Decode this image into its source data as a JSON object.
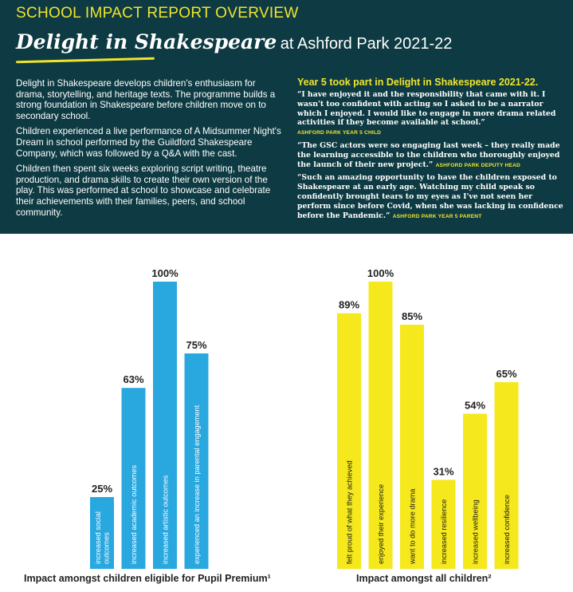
{
  "header": {
    "report_label": "SCHOOL IMPACT REPORT OVERVIEW",
    "brand": "Delight in Shakespeare",
    "title_rest": "at Ashford Park 2021-22"
  },
  "intro": [
    "Delight in Shakespeare develops children's enthusiasm for drama, storytelling, and heritage texts. The programme builds a strong foundation in Shakespeare before children move on to secondary school.",
    "Children experienced a live performance of A Midsummer Night's Dream in school performed by the Guildford Shakespeare Company, which was followed by a Q&A with the cast.",
    "Children then spent six weeks exploring script writing, theatre production, and drama skills to create their own version of the play. This was performed at school to showcase and celebrate their achievements with their families, peers, and school community."
  ],
  "quotes": {
    "heading": "Year 5 took part in Delight in Shakespeare 2021-22.",
    "items": [
      {
        "text": "“I have enjoyed it and the responsibility that came with it. I wasn't too confident with acting so I asked to be a narrator which I enjoyed. I would like to engage in more drama related activities if they become available at school.”",
        "attribution": "ASHFORD PARK YEAR 5 CHILD"
      },
      {
        "text": "“The GSC actors were so engaging last week – they really made the learning accessible to the children who thoroughly enjoyed the launch of their new project.”",
        "attribution": "ASHFORD PARK DEPUTY HEAD"
      },
      {
        "text": "“Such an amazing opportunity to have the children exposed to Shakespeare at an early age. Watching my child speak so confidently brought tears to my eyes as I've not seen her perform since before Covid, when she was lacking in confidence before the Pandemic.”",
        "attribution": "ASHFORD PARK YEAR 5 PARENT"
      }
    ]
  },
  "chart_data": [
    {
      "type": "bar",
      "caption": "Impact amongst children eligible for Pupil Premium¹",
      "categories": [
        "increased social outcomes",
        "increased academic outcomes",
        "increased artistic outcomes",
        "experienced an increase in parental engagement"
      ],
      "values": [
        25,
        63,
        100,
        75
      ],
      "value_labels": [
        "25%",
        "63%",
        "100%",
        "75%"
      ],
      "color": "#29a8e0",
      "ylim": [
        0,
        100
      ]
    },
    {
      "type": "bar",
      "caption": "Impact amongst all children²",
      "categories": [
        "felt proud of what they achieved",
        "enjoyed their experience",
        "want to do more drama",
        "increased resilience",
        "increased wellbeing",
        "increased confidence"
      ],
      "values": [
        89,
        100,
        85,
        31,
        54,
        65
      ],
      "value_labels": [
        "89%",
        "100%",
        "85%",
        "31%",
        "54%",
        "65%"
      ],
      "color": "#f5e81c",
      "ylim": [
        0,
        100
      ]
    }
  ],
  "colors": {
    "header_bg": "#0e3b43",
    "accent": "#f0e52c"
  }
}
